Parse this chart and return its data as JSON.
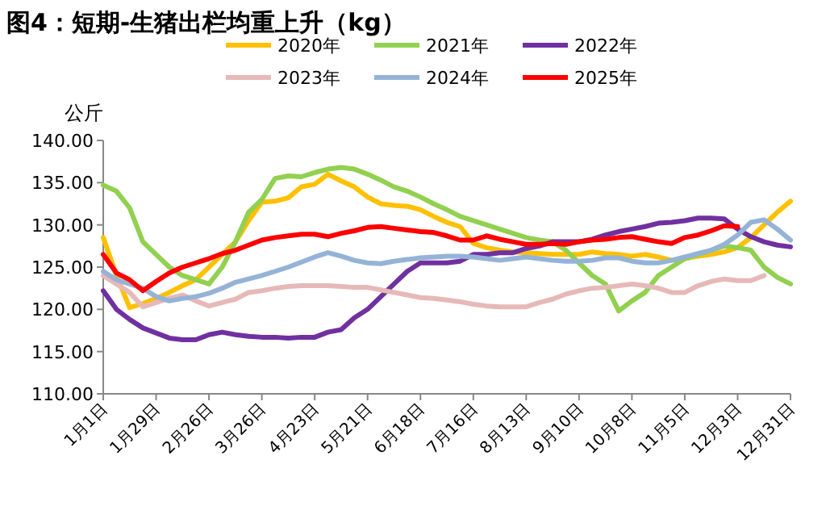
{
  "chart_data": {
    "type": "line",
    "title": "图4：短期-生猪出栏均重上升（kg）",
    "ylabel": "公斤",
    "categories": [
      "1月1日",
      null,
      null,
      null,
      "1月29日",
      null,
      null,
      null,
      "2月26日",
      null,
      null,
      null,
      "3月26日",
      null,
      null,
      null,
      "4月23日",
      null,
      null,
      null,
      "5月21日",
      null,
      null,
      null,
      "6月18日",
      null,
      null,
      null,
      "7月16日",
      null,
      null,
      null,
      "8月13日",
      null,
      null,
      null,
      "9月10日",
      null,
      null,
      null,
      "10月8日",
      null,
      null,
      null,
      "11月5日",
      null,
      null,
      null,
      "12月3日",
      null,
      null,
      null,
      "12月31日"
    ],
    "ylim": [
      110,
      140
    ],
    "yticks": [
      {
        "value": 110,
        "label": "110.00"
      },
      {
        "value": 115,
        "label": "115.00"
      },
      {
        "value": 120,
        "label": "120.00"
      },
      {
        "value": 125,
        "label": "125.00"
      },
      {
        "value": 130,
        "label": "130.00"
      },
      {
        "value": 135,
        "label": "135.00"
      },
      {
        "value": 140,
        "label": "140.00"
      }
    ],
    "grid": false,
    "legend": "top",
    "series": [
      {
        "name": "2020年",
        "color": "#ffc000",
        "values": [
          128.5,
          124,
          120.2,
          120.7,
          121.3,
          122,
          122.8,
          123.5,
          125,
          126.5,
          128,
          130.5,
          132.7,
          132.8,
          133.2,
          134.5,
          134.8,
          136,
          135.2,
          134.5,
          133.3,
          132.5,
          132.3,
          132.2,
          131.8,
          131,
          130.3,
          129.8,
          127.8,
          127.3,
          127,
          126.8,
          126.7,
          126.6,
          126.5,
          126.5,
          126.5,
          126.8,
          126.6,
          126.5,
          126.3,
          126.5,
          126.2,
          125.8,
          126,
          126.3,
          126.5,
          126.8,
          127.3,
          128.5,
          130,
          131.5,
          132.8
        ]
      },
      {
        "name": "2021年",
        "color": "#92d050",
        "values": [
          134.7,
          134,
          132,
          128,
          126.5,
          125,
          124,
          123.5,
          123,
          125,
          128,
          131.5,
          133,
          135.5,
          135.8,
          135.7,
          136.2,
          136.6,
          136.8,
          136.6,
          136,
          135.3,
          134.5,
          134,
          133.3,
          132.5,
          131.8,
          131,
          130.5,
          130,
          129.5,
          129,
          128.5,
          128.2,
          128,
          127,
          125.5,
          124,
          123,
          119.8,
          121,
          122,
          124,
          125,
          126,
          126.5,
          127,
          127.5,
          127.3,
          127,
          125,
          123.8,
          123
        ]
      },
      {
        "name": "2022年",
        "color": "#7030a0",
        "values": [
          122.2,
          120,
          118.8,
          117.8,
          117.2,
          116.6,
          116.4,
          116.4,
          117,
          117.3,
          117,
          116.8,
          116.7,
          116.7,
          116.6,
          116.7,
          116.7,
          117.3,
          117.6,
          119,
          120,
          121.5,
          123,
          124.5,
          125.5,
          125.5,
          125.5,
          125.7,
          126.5,
          126.5,
          126.7,
          126.7,
          127.2,
          127.5,
          128,
          128,
          128,
          128.3,
          128.8,
          129.2,
          129.5,
          129.8,
          130.2,
          130.3,
          130.5,
          130.8,
          130.8,
          130.7,
          129.5,
          128.6,
          128,
          127.6,
          127.4
        ]
      },
      {
        "name": "2023年",
        "color": "#e6b9b8",
        "values": [
          124,
          123,
          122,
          120.3,
          120.8,
          121.3,
          121.7,
          121,
          120.4,
          120.8,
          121.2,
          122,
          122.2,
          122.5,
          122.7,
          122.8,
          122.8,
          122.8,
          122.7,
          122.6,
          122.6,
          122.3,
          122,
          121.7,
          121.4,
          121.3,
          121.1,
          120.9,
          120.6,
          120.4,
          120.3,
          120.3,
          120.3,
          120.8,
          121.2,
          121.8,
          122.2,
          122.5,
          122.6,
          122.8,
          123,
          122.8,
          122.5,
          122,
          122,
          122.8,
          123.3,
          123.6,
          123.4,
          123.4,
          124,
          null,
          null
        ]
      },
      {
        "name": "2024年",
        "color": "#95b3d7",
        "values": [
          124.5,
          123.5,
          123,
          122.5,
          121.5,
          121,
          121.3,
          121.5,
          121.9,
          122.5,
          123.2,
          123.6,
          124,
          124.5,
          125,
          125.6,
          126.2,
          126.7,
          126.3,
          125.8,
          125.5,
          125.4,
          125.7,
          125.9,
          126.1,
          126.2,
          126.3,
          126.3,
          126.2,
          126,
          125.8,
          126,
          126.2,
          126,
          125.8,
          125.7,
          125.7,
          125.8,
          126.1,
          126.1,
          125.7,
          125.5,
          125.5,
          125.8,
          126.2,
          126.6,
          127,
          127.7,
          128.8,
          130.3,
          130.6,
          129.5,
          128.2
        ]
      },
      {
        "name": "2025年",
        "color": "#ff0000",
        "values": [
          126.5,
          124.3,
          123.5,
          122.2,
          123.3,
          124.3,
          125,
          125.5,
          126,
          126.6,
          127,
          127.6,
          128.2,
          128.5,
          128.7,
          128.9,
          128.9,
          128.6,
          129,
          129.3,
          129.7,
          129.8,
          129.6,
          129.4,
          129.2,
          129.1,
          128.7,
          128.2,
          128.2,
          128.7,
          128.3,
          128,
          127.7,
          127.7,
          127.8,
          127.7,
          128,
          128.2,
          128.3,
          128.5,
          128.6,
          128.3,
          128,
          127.8,
          128.5,
          128.8,
          129.3,
          129.9,
          129.8,
          null,
          null,
          null,
          null
        ]
      }
    ]
  }
}
